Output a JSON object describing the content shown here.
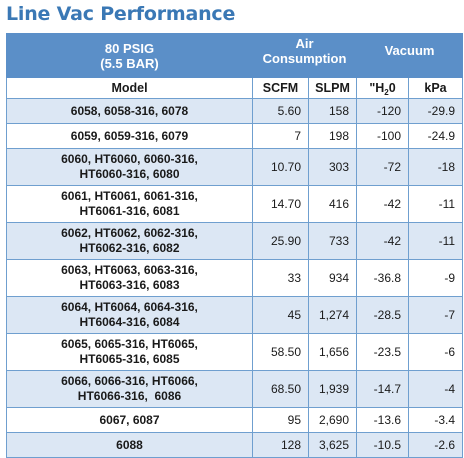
{
  "title": "Line Vac Performance",
  "header": {
    "pressure_line1": "80 PSIG",
    "pressure_line2": "(5.5 BAR)",
    "air_line1": "Air",
    "air_line2": "Consumption",
    "vacuum": "Vacuum",
    "col_model": "Model",
    "col_scfm": "SCFM",
    "col_slpm": "SLPM",
    "col_h2o_prefix": "\"H",
    "col_h2o_sub": "2",
    "col_h2o_suffix": "0",
    "col_kpa": "kPa"
  },
  "rows": [
    {
      "model_line1": "6058, 6058-316, 6078",
      "model_line2": "",
      "scfm": "5.60",
      "slpm": "158",
      "h2o": "-120",
      "kpa": "-29.9"
    },
    {
      "model_line1": "6059, 6059-316, 6079",
      "model_line2": "",
      "scfm": "7",
      "slpm": "198",
      "h2o": "-100",
      "kpa": "-24.9"
    },
    {
      "model_line1": "6060, HT6060, 6060-316,",
      "model_line2": "HT6060-316, 6080",
      "scfm": "10.70",
      "slpm": "303",
      "h2o": "-72",
      "kpa": "-18"
    },
    {
      "model_line1": "6061, HT6061, 6061-316,",
      "model_line2": "HT6061-316, 6081",
      "scfm": "14.70",
      "slpm": "416",
      "h2o": "-42",
      "kpa": "-11"
    },
    {
      "model_line1": "6062, HT6062, 6062-316,",
      "model_line2": "HT6062-316, 6082",
      "scfm": "25.90",
      "slpm": "733",
      "h2o": "-42",
      "kpa": "-11"
    },
    {
      "model_line1": "6063, HT6063, 6063-316,",
      "model_line2": "HT6063-316, 6083",
      "scfm": "33",
      "slpm": "934",
      "h2o": "-36.8",
      "kpa": "-9"
    },
    {
      "model_line1": "6064, HT6064, 6064-316,",
      "model_line2": "HT6064-316, 6084",
      "scfm": "45",
      "slpm": "1,274",
      "h2o": "-28.5",
      "kpa": "-7"
    },
    {
      "model_line1": "6065, 6065-316, HT6065,",
      "model_line2": "HT6065-316, 6085",
      "scfm": "58.50",
      "slpm": "1,656",
      "h2o": "-23.5",
      "kpa": "-6"
    },
    {
      "model_line1": "6066, 6066-316, HT6066,",
      "model_line2": "HT6066-316,  6086",
      "scfm": "68.50",
      "slpm": "1,939",
      "h2o": "-14.7",
      "kpa": "-4"
    },
    {
      "model_line1": "6067, 6087",
      "model_line2": "",
      "scfm": "95",
      "slpm": "2,690",
      "h2o": "-13.6",
      "kpa": "-3.4"
    },
    {
      "model_line1": "6088",
      "model_line2": "",
      "scfm": "128",
      "slpm": "3,625",
      "h2o": "-10.5",
      "kpa": "-2.6"
    }
  ]
}
